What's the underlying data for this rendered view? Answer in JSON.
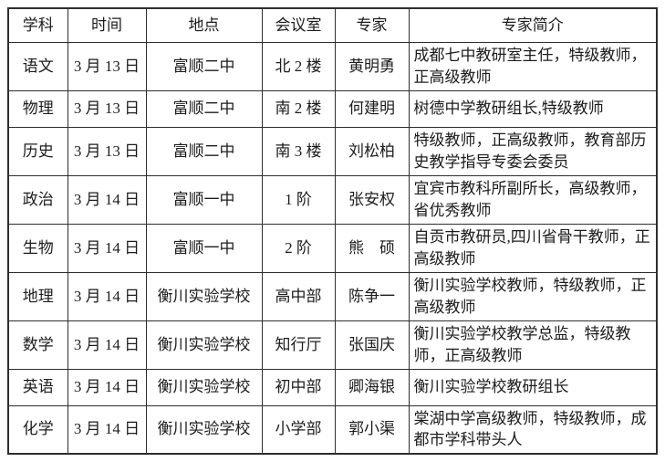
{
  "table": {
    "headers": {
      "subject": "学科",
      "time": "时间",
      "place": "地点",
      "room": "会议室",
      "expert": "专家",
      "bio": "专家简介"
    },
    "rows": [
      {
        "subject": "语文",
        "time": "3 月 13 日",
        "place": "富顺二中",
        "room": "北 2 楼",
        "expert": "黄明勇",
        "bio": "成都七中教研室主任，特级教师，正高级教师"
      },
      {
        "subject": "物理",
        "time": "3 月 13 日",
        "place": "富顺二中",
        "room": "南 2 楼",
        "expert": "何建明",
        "bio": "树德中学教研组长,特级教师"
      },
      {
        "subject": "历史",
        "time": "3 月 13 日",
        "place": "富顺二中",
        "room": "南 3 楼",
        "expert": "刘松柏",
        "bio": "特级教师，正高级教师，教育部历史教学指导专委会委员"
      },
      {
        "subject": "政治",
        "time": "3 月 14 日",
        "place": "富顺一中",
        "room": "1 阶",
        "expert": "张安权",
        "bio": "宜宾市教科所副所长，高级教师，省优秀教师"
      },
      {
        "subject": "生物",
        "time": "3 月 14 日",
        "place": "富顺一中",
        "room": "2 阶",
        "expert": "熊　硕",
        "bio": "自贡市教研员,四川省骨干教师，正高级教师"
      },
      {
        "subject": "地理",
        "time": "3 月 14 日",
        "place": "衡川实验学校",
        "room": "高中部",
        "expert": "陈争一",
        "bio": "衡川实验学校教师，特级教师，正高级教师"
      },
      {
        "subject": "数学",
        "time": "3 月 14 日",
        "place": "衡川实验学校",
        "room": "知行厅",
        "expert": "张国庆",
        "bio": "衡川实验学校教学总监，特级教师，正高级教师"
      },
      {
        "subject": "英语",
        "time": "3 月 14 日",
        "place": "衡川实验学校",
        "room": "初中部",
        "expert": "卿海银",
        "bio": "衡川实验学校教研组长"
      },
      {
        "subject": "化学",
        "time": "3 月 14 日",
        "place": "衡川实验学校",
        "room": "小学部",
        "expert": "郭小渠",
        "bio": "棠湖中学高级教师，特级教师，成都市学科带头人"
      }
    ]
  }
}
